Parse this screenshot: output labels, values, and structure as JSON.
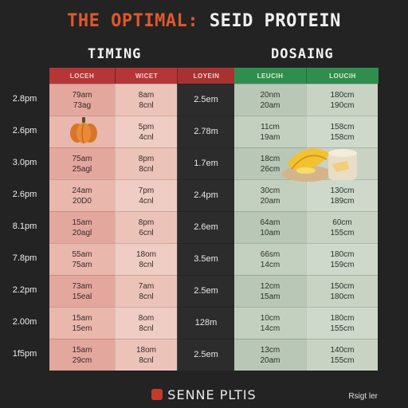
{
  "title": {
    "part1": "THE OPTIMAL:",
    "part2": " SEID PROTEIN"
  },
  "sections": {
    "timing": "TIMING",
    "dosing": "DOSAING"
  },
  "headers": [
    "LOCEH",
    "WICET",
    "LOYEIN",
    "LEUCIH",
    "LOUCIH"
  ],
  "rows": [
    {
      "label": "2.8pm",
      "c1": [
        "79am",
        "73ag"
      ],
      "c2": [
        "8am",
        "8cnl"
      ],
      "c3": "2.5em",
      "c4": [
        "20nm",
        "20am"
      ],
      "c5": [
        "180cm",
        "190cm"
      ]
    },
    {
      "label": "2.6pm",
      "c1": [
        "",
        ""
      ],
      "c2": [
        "5pm",
        "4cnl"
      ],
      "c3": "2.78m",
      "c4": [
        "11cm",
        "19am"
      ],
      "c5": [
        "158cm",
        "158cm"
      ]
    },
    {
      "label": "3.0pm",
      "c1": [
        "75am",
        "25agl"
      ],
      "c2": [
        "8pm",
        "8cnl"
      ],
      "c3": "1.7em",
      "c4": [
        "18cm",
        "26cm"
      ],
      "c5": [
        "180cm",
        "155cs"
      ]
    },
    {
      "label": "2.6pm",
      "c1": [
        "24am",
        "20D0"
      ],
      "c2": [
        "7pm",
        "4cnl"
      ],
      "c3": "2.4pm",
      "c4": [
        "30cm",
        "20am"
      ],
      "c5": [
        "130cm",
        "189cm"
      ]
    },
    {
      "label": "8.1pm",
      "c1": [
        "15am",
        "20agl"
      ],
      "c2": [
        "8pm",
        "6cnl"
      ],
      "c3": "2.6em",
      "c4": [
        "64am",
        "10am"
      ],
      "c5": [
        "60cm",
        "155cm"
      ]
    },
    {
      "label": "7.8pm",
      "c1": [
        "55am",
        "75am"
      ],
      "c2": [
        "18om",
        "8cnl"
      ],
      "c3": "3.5em",
      "c4": [
        "66sm",
        "14cm"
      ],
      "c5": [
        "180cm",
        "159cm"
      ]
    },
    {
      "label": "2.2pm",
      "c1": [
        "73am",
        "15eal"
      ],
      "c2": [
        "7am",
        "8cnl"
      ],
      "c3": "2.5em",
      "c4": [
        "12cm",
        "15am"
      ],
      "c5": [
        "150cm",
        "180cm"
      ]
    },
    {
      "label": "2.00m",
      "c1": [
        "15am",
        "15em"
      ],
      "c2": [
        "8om",
        "8cnl"
      ],
      "c3": "128m",
      "c4": [
        "10cm",
        "14cm"
      ],
      "c5": [
        "180cm",
        "155cm"
      ]
    },
    {
      "label": "1f5pm",
      "c1": [
        "15am",
        "29cm"
      ],
      "c2": [
        "18om",
        "8cnl"
      ],
      "c3": "2.5em",
      "c4": [
        "13cm",
        "20am"
      ],
      "c5": [
        "140cm",
        "155cm"
      ]
    }
  ],
  "footer": "SENNE PLTIS",
  "corner": "Rsigt ler"
}
